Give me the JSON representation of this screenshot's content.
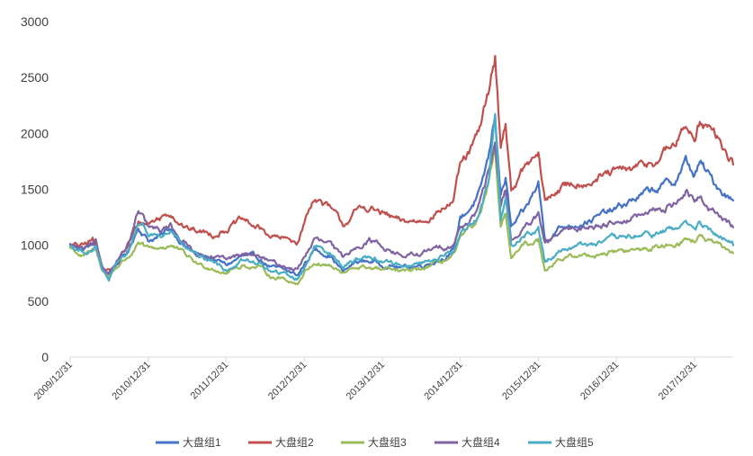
{
  "chart_data": {
    "type": "line",
    "title": "",
    "xlabel": "",
    "ylabel": "",
    "ylim": [
      0,
      3000
    ],
    "y_ticks": [
      0,
      500,
      1000,
      1500,
      2000,
      2500,
      3000
    ],
    "x_ticks": [
      "2009/12/31",
      "2010/12/31",
      "2011/12/31",
      "2012/12/31",
      "2013/12/31",
      "2014/12/31",
      "2015/12/31",
      "2016/12/31",
      "2017/12/31"
    ],
    "xlim": [
      "2009/12/31",
      "2018/06/30"
    ],
    "legend_position": "bottom",
    "grid": false,
    "series": [
      {
        "name": "大盘组1",
        "color": "#4472C4",
        "points": [
          [
            "2009/12/31",
            1000
          ],
          [
            "2010/02/28",
            970
          ],
          [
            "2010/04/30",
            1020
          ],
          [
            "2010/05/31",
            780
          ],
          [
            "2010/06/30",
            730
          ],
          [
            "2010/07/31",
            820
          ],
          [
            "2010/09/30",
            950
          ],
          [
            "2010/11/15",
            1170
          ],
          [
            "2010/12/31",
            1050
          ],
          [
            "2011/02/28",
            1080
          ],
          [
            "2011/04/15",
            1150
          ],
          [
            "2011/06/30",
            980
          ],
          [
            "2011/08/31",
            900
          ],
          [
            "2011/10/31",
            880
          ],
          [
            "2011/12/31",
            820
          ],
          [
            "2012/03/15",
            900
          ],
          [
            "2012/05/31",
            880
          ],
          [
            "2012/07/31",
            800
          ],
          [
            "2012/09/30",
            770
          ],
          [
            "2012/11/30",
            730
          ],
          [
            "2012/12/31",
            830
          ],
          [
            "2013/02/15",
            960
          ],
          [
            "2013/04/30",
            920
          ],
          [
            "2013/06/30",
            760
          ],
          [
            "2013/08/31",
            850
          ],
          [
            "2013/10/31",
            860
          ],
          [
            "2013/12/31",
            830
          ],
          [
            "2014/03/31",
            800
          ],
          [
            "2014/06/30",
            820
          ],
          [
            "2014/09/30",
            880
          ],
          [
            "2014/11/30",
            950
          ],
          [
            "2014/12/31",
            1250
          ],
          [
            "2015/01/31",
            1300
          ],
          [
            "2015/03/31",
            1450
          ],
          [
            "2015/05/15",
            1800
          ],
          [
            "2015/06/12",
            2180
          ],
          [
            "2015/07/08",
            1450
          ],
          [
            "2015/07/31",
            1600
          ],
          [
            "2015/08/26",
            1150
          ],
          [
            "2015/10/31",
            1300
          ],
          [
            "2015/12/31",
            1550
          ],
          [
            "2016/01/31",
            1050
          ],
          [
            "2016/03/31",
            1150
          ],
          [
            "2016/06/30",
            1200
          ],
          [
            "2016/09/30",
            1250
          ],
          [
            "2016/12/31",
            1320
          ],
          [
            "2017/03/31",
            1420
          ],
          [
            "2017/06/30",
            1500
          ],
          [
            "2017/09/30",
            1570
          ],
          [
            "2017/11/20",
            1750
          ],
          [
            "2017/12/31",
            1620
          ],
          [
            "2018/01/25",
            1730
          ],
          [
            "2018/03/31",
            1560
          ],
          [
            "2018/06/30",
            1400
          ]
        ]
      },
      {
        "name": "大盘组2",
        "color": "#C0504D",
        "points": [
          [
            "2009/12/31",
            1000
          ],
          [
            "2010/02/28",
            990
          ],
          [
            "2010/04/15",
            1050
          ],
          [
            "2010/05/31",
            800
          ],
          [
            "2010/07/15",
            780
          ],
          [
            "2010/09/30",
            1000
          ],
          [
            "2010/11/15",
            1200
          ],
          [
            "2010/12/31",
            1200
          ],
          [
            "2011/02/28",
            1250
          ],
          [
            "2011/04/15",
            1300
          ],
          [
            "2011/06/30",
            1150
          ],
          [
            "2011/08/31",
            1120
          ],
          [
            "2011/10/31",
            1100
          ],
          [
            "2011/12/31",
            1150
          ],
          [
            "2012/03/15",
            1220
          ],
          [
            "2012/05/31",
            1150
          ],
          [
            "2012/07/31",
            1080
          ],
          [
            "2012/09/30",
            1050
          ],
          [
            "2012/11/30",
            1030
          ],
          [
            "2012/12/31",
            1200
          ],
          [
            "2013/02/15",
            1440
          ],
          [
            "2013/04/30",
            1320
          ],
          [
            "2013/06/30",
            1180
          ],
          [
            "2013/08/31",
            1300
          ],
          [
            "2013/10/31",
            1340
          ],
          [
            "2013/12/31",
            1280
          ],
          [
            "2014/03/31",
            1200
          ],
          [
            "2014/06/30",
            1220
          ],
          [
            "2014/09/30",
            1320
          ],
          [
            "2014/11/30",
            1400
          ],
          [
            "2014/12/31",
            1700
          ],
          [
            "2015/01/31",
            1780
          ],
          [
            "2015/03/31",
            2000
          ],
          [
            "2015/05/15",
            2400
          ],
          [
            "2015/06/12",
            2680
          ],
          [
            "2015/07/08",
            1900
          ],
          [
            "2015/07/31",
            2100
          ],
          [
            "2015/08/26",
            1500
          ],
          [
            "2015/10/31",
            1700
          ],
          [
            "2015/12/31",
            1800
          ],
          [
            "2016/01/31",
            1380
          ],
          [
            "2016/03/31",
            1500
          ],
          [
            "2016/06/30",
            1560
          ],
          [
            "2016/09/30",
            1600
          ],
          [
            "2016/12/31",
            1650
          ],
          [
            "2017/03/31",
            1680
          ],
          [
            "2017/06/30",
            1750
          ],
          [
            "2017/09/30",
            1900
          ],
          [
            "2017/11/20",
            2050
          ],
          [
            "2017/12/31",
            2000
          ],
          [
            "2018/01/25",
            2130
          ],
          [
            "2018/03/31",
            2000
          ],
          [
            "2018/06/30",
            1720
          ]
        ]
      },
      {
        "name": "大盘组3",
        "color": "#9BBB59",
        "points": [
          [
            "2009/12/31",
            980
          ],
          [
            "2010/02/28",
            900
          ],
          [
            "2010/04/30",
            950
          ],
          [
            "2010/05/31",
            780
          ],
          [
            "2010/06/30",
            720
          ],
          [
            "2010/07/31",
            800
          ],
          [
            "2010/09/30",
            900
          ],
          [
            "2010/11/15",
            1000
          ],
          [
            "2010/12/31",
            960
          ],
          [
            "2011/02/28",
            980
          ],
          [
            "2011/04/15",
            1000
          ],
          [
            "2011/06/30",
            900
          ],
          [
            "2011/08/31",
            820
          ],
          [
            "2011/10/31",
            800
          ],
          [
            "2011/12/31",
            760
          ],
          [
            "2012/03/15",
            820
          ],
          [
            "2012/05/31",
            800
          ],
          [
            "2012/07/31",
            720
          ],
          [
            "2012/09/30",
            700
          ],
          [
            "2012/11/30",
            660
          ],
          [
            "2012/12/31",
            760
          ],
          [
            "2013/02/15",
            850
          ],
          [
            "2013/04/30",
            820
          ],
          [
            "2013/06/30",
            740
          ],
          [
            "2013/08/31",
            800
          ],
          [
            "2013/10/31",
            800
          ],
          [
            "2013/12/31",
            780
          ],
          [
            "2014/03/31",
            760
          ],
          [
            "2014/06/30",
            780
          ],
          [
            "2014/09/30",
            850
          ],
          [
            "2014/11/30",
            900
          ],
          [
            "2014/12/31",
            1050
          ],
          [
            "2015/01/31",
            1100
          ],
          [
            "2015/03/31",
            1250
          ],
          [
            "2015/05/15",
            1550
          ],
          [
            "2015/06/12",
            1800
          ],
          [
            "2015/07/08",
            1150
          ],
          [
            "2015/07/31",
            1250
          ],
          [
            "2015/08/26",
            900
          ],
          [
            "2015/10/31",
            1000
          ],
          [
            "2015/12/31",
            1050
          ],
          [
            "2016/01/31",
            790
          ],
          [
            "2016/03/31",
            880
          ],
          [
            "2016/06/30",
            900
          ],
          [
            "2016/09/30",
            920
          ],
          [
            "2016/12/31",
            950
          ],
          [
            "2017/03/31",
            950
          ],
          [
            "2017/06/30",
            980
          ],
          [
            "2017/09/30",
            1020
          ],
          [
            "2017/11/20",
            1060
          ],
          [
            "2017/12/31",
            1040
          ],
          [
            "2018/01/25",
            1080
          ],
          [
            "2018/03/31",
            1000
          ],
          [
            "2018/06/30",
            930
          ]
        ]
      },
      {
        "name": "大盘组4",
        "color": "#8064A2",
        "points": [
          [
            "2009/12/31",
            1000
          ],
          [
            "2010/02/28",
            960
          ],
          [
            "2010/04/30",
            1000
          ],
          [
            "2010/05/31",
            800
          ],
          [
            "2010/06/30",
            760
          ],
          [
            "2010/07/31",
            850
          ],
          [
            "2010/09/30",
            1000
          ],
          [
            "2010/11/15",
            1290
          ],
          [
            "2010/12/31",
            1150
          ],
          [
            "2011/02/28",
            1120
          ],
          [
            "2011/04/15",
            1180
          ],
          [
            "2011/06/30",
            1000
          ],
          [
            "2011/08/31",
            920
          ],
          [
            "2011/10/31",
            900
          ],
          [
            "2011/12/31",
            860
          ],
          [
            "2012/03/15",
            920
          ],
          [
            "2012/05/31",
            900
          ],
          [
            "2012/07/31",
            840
          ],
          [
            "2012/09/30",
            810
          ],
          [
            "2012/11/30",
            780
          ],
          [
            "2012/12/31",
            900
          ],
          [
            "2013/02/15",
            1050
          ],
          [
            "2013/04/30",
            1000
          ],
          [
            "2013/06/30",
            880
          ],
          [
            "2013/08/31",
            1000
          ],
          [
            "2013/10/31",
            1050
          ],
          [
            "2013/12/31",
            1000
          ],
          [
            "2014/03/31",
            900
          ],
          [
            "2014/06/30",
            920
          ],
          [
            "2014/09/30",
            980
          ],
          [
            "2014/11/30",
            1020
          ],
          [
            "2014/12/31",
            1150
          ],
          [
            "2015/01/31",
            1200
          ],
          [
            "2015/03/31",
            1350
          ],
          [
            "2015/05/15",
            1650
          ],
          [
            "2015/06/12",
            1920
          ],
          [
            "2015/07/08",
            1350
          ],
          [
            "2015/07/31",
            1500
          ],
          [
            "2015/08/26",
            1050
          ],
          [
            "2015/10/31",
            1150
          ],
          [
            "2015/12/31",
            1250
          ],
          [
            "2016/01/31",
            1000
          ],
          [
            "2016/03/31",
            1100
          ],
          [
            "2016/06/30",
            1150
          ],
          [
            "2016/09/30",
            1180
          ],
          [
            "2016/12/31",
            1220
          ],
          [
            "2017/03/31",
            1250
          ],
          [
            "2017/06/30",
            1300
          ],
          [
            "2017/09/30",
            1380
          ],
          [
            "2017/11/20",
            1490
          ],
          [
            "2017/12/31",
            1380
          ],
          [
            "2018/01/25",
            1420
          ],
          [
            "2018/03/31",
            1300
          ],
          [
            "2018/06/30",
            1160
          ]
        ]
      },
      {
        "name": "大盘组5",
        "color": "#4BACC6",
        "points": [
          [
            "2009/12/31",
            1000
          ],
          [
            "2010/02/28",
            940
          ],
          [
            "2010/04/30",
            980
          ],
          [
            "2010/05/31",
            760
          ],
          [
            "2010/06/30",
            690
          ],
          [
            "2010/07/31",
            800
          ],
          [
            "2010/09/30",
            950
          ],
          [
            "2010/11/15",
            1180
          ],
          [
            "2010/12/31",
            1100
          ],
          [
            "2011/02/28",
            1080
          ],
          [
            "2011/04/15",
            1120
          ],
          [
            "2011/06/30",
            960
          ],
          [
            "2011/08/31",
            870
          ],
          [
            "2011/10/31",
            850
          ],
          [
            "2011/12/31",
            780
          ],
          [
            "2012/03/15",
            860
          ],
          [
            "2012/05/31",
            840
          ],
          [
            "2012/07/31",
            760
          ],
          [
            "2012/09/30",
            740
          ],
          [
            "2012/11/30",
            700
          ],
          [
            "2012/12/31",
            800
          ],
          [
            "2013/02/15",
            1000
          ],
          [
            "2013/04/30",
            950
          ],
          [
            "2013/06/30",
            800
          ],
          [
            "2013/08/31",
            880
          ],
          [
            "2013/10/31",
            900
          ],
          [
            "2013/12/31",
            860
          ],
          [
            "2014/03/31",
            820
          ],
          [
            "2014/06/30",
            840
          ],
          [
            "2014/09/30",
            900
          ],
          [
            "2014/11/30",
            940
          ],
          [
            "2014/12/31",
            1100
          ],
          [
            "2015/01/31",
            1150
          ],
          [
            "2015/03/31",
            1300
          ],
          [
            "2015/05/15",
            1600
          ],
          [
            "2015/06/12",
            2200
          ],
          [
            "2015/07/08",
            1250
          ],
          [
            "2015/07/31",
            1400
          ],
          [
            "2015/08/26",
            1000
          ],
          [
            "2015/10/31",
            1100
          ],
          [
            "2015/12/31",
            1150
          ],
          [
            "2016/01/31",
            850
          ],
          [
            "2016/03/31",
            950
          ],
          [
            "2016/06/30",
            1000
          ],
          [
            "2016/09/30",
            1020
          ],
          [
            "2016/12/31",
            1050
          ],
          [
            "2017/03/31",
            1080
          ],
          [
            "2017/06/30",
            1100
          ],
          [
            "2017/09/30",
            1150
          ],
          [
            "2017/11/20",
            1200
          ],
          [
            "2017/12/31",
            1150
          ],
          [
            "2018/01/25",
            1180
          ],
          [
            "2018/03/31",
            1100
          ],
          [
            "2018/06/30",
            1000
          ]
        ]
      }
    ]
  }
}
